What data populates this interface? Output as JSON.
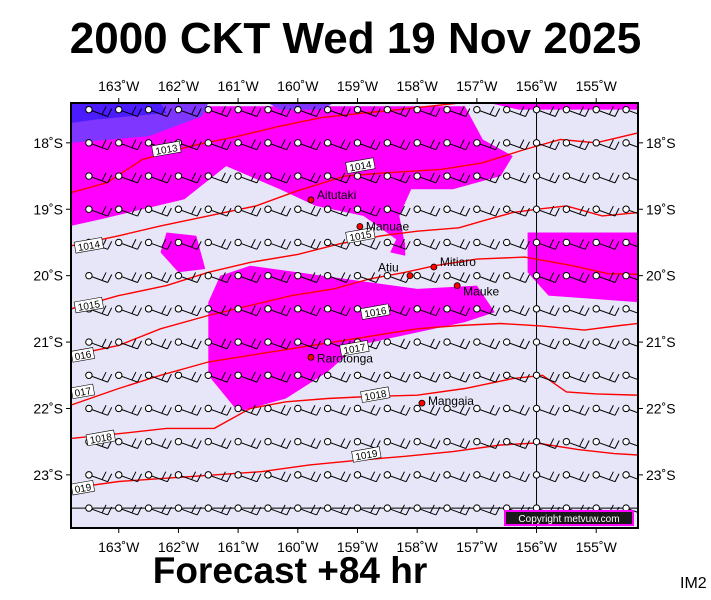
{
  "title": "2000 CKT Wed 19 Nov 2025",
  "subtitle": "Forecast +84 hr",
  "model_code": "IM2",
  "copyright": "Copyright metvuw.com",
  "colors": {
    "background": "#e6e6f8",
    "rain_light": "#ff00ff",
    "rain_heavy": "#7f36ff",
    "rain_heaviest": "#4a1cff",
    "isobar": "#ff0000",
    "island": "#ff0000"
  },
  "map": {
    "lon_range": [
      -163.8,
      -154.3
    ],
    "lat_range": [
      -23.8,
      -17.4
    ],
    "lon_ticks": [
      {
        "value": -163,
        "label": "163˚W"
      },
      {
        "value": -162,
        "label": "162˚W"
      },
      {
        "value": -161,
        "label": "161˚W"
      },
      {
        "value": -160,
        "label": "160˚W"
      },
      {
        "value": -159,
        "label": "159˚W"
      },
      {
        "value": -158,
        "label": "158˚W"
      },
      {
        "value": -157,
        "label": "157˚W"
      },
      {
        "value": -156,
        "label": "156˚W"
      },
      {
        "value": -155,
        "label": "155˚W"
      }
    ],
    "lat_ticks": [
      {
        "value": -18,
        "label": "18˚S"
      },
      {
        "value": -19,
        "label": "19˚S"
      },
      {
        "value": -20,
        "label": "20˚S"
      },
      {
        "value": -21,
        "label": "21˚S"
      },
      {
        "value": -22,
        "label": "22˚S"
      },
      {
        "value": -23,
        "label": "23˚S"
      }
    ],
    "reference_lines": {
      "lon": -156,
      "lat": -23.5
    },
    "islands": [
      {
        "name": "Aitutaki",
        "lon": -159.78,
        "lat": -18.86
      },
      {
        "name": "Manuae",
        "lon": -158.96,
        "lat": -19.26
      },
      {
        "name": "Mitiaro",
        "lon": -157.72,
        "lat": -19.87
      },
      {
        "name": "Atiu",
        "lon": -158.12,
        "lat": -20.0
      },
      {
        "name": "Mauke",
        "lon": -157.33,
        "lat": -20.15
      },
      {
        "name": "Rarotonga",
        "lon": -159.78,
        "lat": -21.23
      },
      {
        "name": "Mangaia",
        "lon": -157.92,
        "lat": -21.92
      }
    ],
    "isobars": [
      {
        "label": "1013",
        "lon": [
          -163.8,
          -163.2,
          -162.6,
          -161.8,
          -161.0,
          -160.3,
          -159.6,
          -158.9,
          -158.3,
          -157.8,
          -157.3
        ],
        "lat": [
          -18.75,
          -18.6,
          -18.25,
          -18.05,
          -17.9,
          -17.75,
          -17.62,
          -17.55,
          -17.5,
          -17.45,
          -17.4
        ]
      },
      {
        "label": "1014",
        "lon": [
          -163.8,
          -163.0,
          -162.3,
          -161.5,
          -160.7,
          -160.0,
          -159.2,
          -158.5,
          -157.6,
          -156.9,
          -156.2,
          -155.6,
          -155.0,
          -154.3
        ],
        "lat": [
          -19.55,
          -19.4,
          -19.25,
          -19.1,
          -18.95,
          -18.72,
          -18.5,
          -18.45,
          -18.4,
          -18.3,
          -18.1,
          -17.95,
          -18.0,
          -17.85
        ]
      },
      {
        "label": "1015",
        "lon": [
          -163.8,
          -163.0,
          -162.2,
          -161.5,
          -160.8,
          -160.0,
          -159.3,
          -158.6,
          -158.0,
          -157.3,
          -156.8,
          -156.4,
          -156.0,
          -155.5,
          -154.9,
          -154.3
        ],
        "lat": [
          -20.5,
          -20.3,
          -20.15,
          -19.95,
          -19.8,
          -19.68,
          -19.52,
          -19.4,
          -19.33,
          -19.28,
          -19.15,
          -19.05,
          -19.0,
          -18.95,
          -19.1,
          -19.05
        ]
      },
      {
        "label": "1016",
        "lon": [
          -163.8,
          -163.0,
          -162.3,
          -161.5,
          -160.8,
          -160.1,
          -159.4,
          -158.8,
          -158.2,
          -157.7,
          -157.0,
          -156.2,
          -155.4,
          -154.8,
          -154.3
        ],
        "lat": [
          -21.2,
          -21.05,
          -20.8,
          -20.6,
          -20.45,
          -20.3,
          -20.2,
          -20.05,
          -19.95,
          -19.85,
          -19.75,
          -19.72,
          -19.85,
          -19.97,
          -19.98
        ]
      },
      {
        "label": "1017",
        "lon": [
          -163.8,
          -163.0,
          -162.3,
          -161.5,
          -160.8,
          -160.1,
          -159.4,
          -158.7,
          -158.0,
          -157.3,
          -156.6,
          -155.9,
          -155.2,
          -154.6,
          -154.3
        ],
        "lat": [
          -21.95,
          -21.7,
          -21.5,
          -21.3,
          -21.2,
          -21.1,
          -21.0,
          -20.9,
          -20.8,
          -20.75,
          -20.72,
          -20.76,
          -20.82,
          -20.75,
          -20.72
        ]
      },
      {
        "label": "1018",
        "lon": [
          -163.8,
          -163.0,
          -162.2,
          -161.4,
          -160.8,
          -160.2,
          -159.5,
          -158.8,
          -158.0,
          -157.2,
          -156.4,
          -155.9,
          -155.5,
          -155.0,
          -154.3
        ],
        "lat": [
          -22.45,
          -22.38,
          -22.3,
          -22.3,
          -22.0,
          -21.9,
          -21.85,
          -21.82,
          -21.8,
          -21.7,
          -21.55,
          -21.5,
          -21.75,
          -21.78,
          -21.8
        ]
      },
      {
        "label": "1019",
        "lon": [
          -163.8,
          -163.0,
          -162.2,
          -161.4,
          -160.6,
          -159.8,
          -159.0,
          -158.2,
          -157.4,
          -156.6,
          -156.0,
          -155.3,
          -154.7,
          -154.3
        ],
        "lat": [
          -23.2,
          -23.1,
          -23.05,
          -23.0,
          -22.95,
          -22.85,
          -22.78,
          -22.72,
          -22.65,
          -22.55,
          -22.52,
          -22.62,
          -22.68,
          -22.7
        ]
      }
    ],
    "isobar_labels": [
      {
        "text": "1013",
        "lon": -162.2,
        "lat": -18.1
      },
      {
        "text": "1014",
        "lon": -158.95,
        "lat": -18.35
      },
      {
        "text": "1014",
        "lon": -163.5,
        "lat": -19.55
      },
      {
        "text": "1015",
        "lon": -158.95,
        "lat": -19.4
      },
      {
        "text": "1015",
        "lon": -163.5,
        "lat": -20.45
      },
      {
        "text": "1016",
        "lon": -158.7,
        "lat": -20.55
      },
      {
        "text": "016",
        "lon": -163.6,
        "lat": -21.2
      },
      {
        "text": "1017",
        "lon": -159.05,
        "lat": -21.1
      },
      {
        "text": "017",
        "lon": -163.6,
        "lat": -21.75
      },
      {
        "text": "1018",
        "lon": -158.7,
        "lat": -21.8
      },
      {
        "text": "1018",
        "lon": -163.3,
        "lat": -22.45
      },
      {
        "text": "1019",
        "lon": -158.85,
        "lat": -22.7
      },
      {
        "text": "019",
        "lon": -163.6,
        "lat": -23.2
      }
    ],
    "rain_areas": [
      {
        "level": "light",
        "lon": [
          -163.8,
          -157.2,
          -156.9,
          -156.4,
          -156.6,
          -157.4,
          -158.1,
          -158.3,
          -158.2,
          -158.9,
          -159.7,
          -160.3,
          -161.2,
          -161.9,
          -162.6,
          -163.3,
          -163.8
        ],
        "lat": [
          -17.45,
          -17.45,
          -17.95,
          -18.2,
          -18.5,
          -18.7,
          -18.7,
          -19.1,
          -19.55,
          -19.1,
          -18.95,
          -18.7,
          -18.35,
          -18.85,
          -19.0,
          -19.15,
          -19.25
        ]
      },
      {
        "level": "light",
        "lon": [
          -162.9,
          -162.5,
          -162.3,
          -162.8,
          -163.1
        ],
        "lat": [
          -17.95,
          -17.95,
          -18.25,
          -18.3,
          -18.15
        ]
      },
      {
        "level": "light",
        "lon": [
          -158.35,
          -158.2,
          -158.2,
          -158.45
        ],
        "lat": [
          -19.45,
          -19.5,
          -19.7,
          -19.65
        ]
      },
      {
        "level": "light",
        "lon": [
          -162.2,
          -161.7,
          -161.55,
          -162.0,
          -162.3
        ],
        "lat": [
          -19.35,
          -19.4,
          -19.9,
          -19.95,
          -19.65
        ]
      },
      {
        "level": "light",
        "lon": [
          -160.8,
          -158.0,
          -157.0,
          -156.7,
          -157.2,
          -159.0,
          -159.5,
          -160.2,
          -161.0,
          -161.5,
          -161.5,
          -161.3
        ],
        "lat": [
          -19.85,
          -20.2,
          -20.15,
          -20.55,
          -20.7,
          -21.05,
          -21.45,
          -21.85,
          -22.05,
          -21.5,
          -20.4,
          -20.0
        ]
      },
      {
        "level": "light",
        "lon": [
          -156.15,
          -154.3,
          -154.3,
          -155.8,
          -156.15
        ],
        "lat": [
          -19.35,
          -19.35,
          -20.4,
          -20.3,
          -19.95
        ]
      },
      {
        "level": "light",
        "lon": [
          -156.8,
          -154.3,
          -154.3,
          -156.3
        ],
        "lat": [
          -17.4,
          -17.4,
          -17.5,
          -17.5
        ]
      },
      {
        "level": "heavy",
        "lon": [
          -163.8,
          -161.5,
          -161.6,
          -162.5,
          -163.8
        ],
        "lat": [
          -17.4,
          -17.4,
          -17.6,
          -17.9,
          -18.0
        ]
      },
      {
        "level": "heaviest",
        "lon": [
          -163.8,
          -162.3,
          -162.2,
          -163.4,
          -163.8
        ],
        "lat": [
          -17.4,
          -17.4,
          -17.55,
          -17.65,
          -17.7
        ]
      },
      {
        "level": "heavy",
        "lon": [
          -160.5,
          -159.4,
          -159.6,
          -160.3
        ],
        "lat": [
          -17.4,
          -17.4,
          -17.5,
          -17.5
        ]
      }
    ],
    "wind_grid": {
      "lon_start": -163.5,
      "lon_step": 0.5,
      "lon_count": 19,
      "lat_start": -17.5,
      "lat_step": -0.5,
      "lat_count": 13,
      "barb_direction_deg": 110
    }
  }
}
